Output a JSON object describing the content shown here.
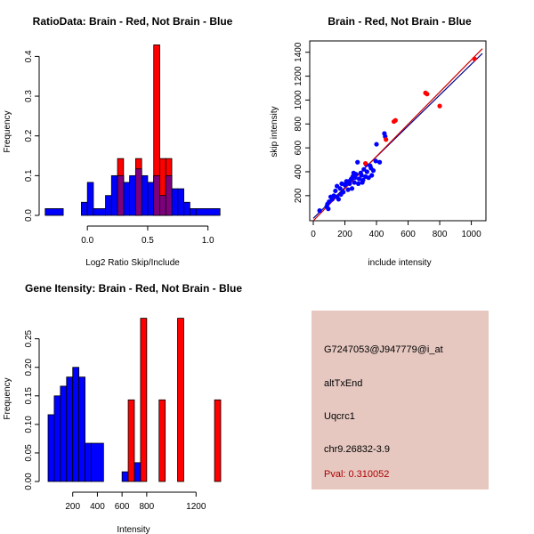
{
  "chart_data": [
    {
      "id": "ratio",
      "type": "bar",
      "title": "RatioData: Brain - Red, Not Brain - Blue",
      "xlabel": "Log2 Ratio Skip/Include",
      "ylabel": "Frequency",
      "xlim": [
        -0.4,
        1.15
      ],
      "ylim": [
        0,
        0.43
      ],
      "xticks": [
        0.0,
        0.5,
        1.0
      ],
      "xtick_labels": [
        "0.0",
        "0.5",
        "1.0"
      ],
      "yticks": [
        0.0,
        0.1,
        0.2,
        0.3,
        0.4
      ],
      "ytick_labels": [
        "0.0",
        "0.1",
        "0.2",
        "0.3",
        "0.4"
      ],
      "series": [
        {
          "name": "Not Brain",
          "color": "#0000ff",
          "bins": [
            {
              "x0": -0.35,
              "x1": -0.2,
              "y": 0.017
            },
            {
              "x0": -0.05,
              "x1": 0.0,
              "y": 0.033
            },
            {
              "x0": 0.0,
              "x1": 0.05,
              "y": 0.083
            },
            {
              "x0": 0.05,
              "x1": 0.15,
              "y": 0.017
            },
            {
              "x0": 0.15,
              "x1": 0.2,
              "y": 0.05
            },
            {
              "x0": 0.2,
              "x1": 0.3,
              "y": 0.1
            },
            {
              "x0": 0.3,
              "x1": 0.35,
              "y": 0.083
            },
            {
              "x0": 0.35,
              "x1": 0.4,
              "y": 0.1
            },
            {
              "x0": 0.4,
              "x1": 0.45,
              "y": 0.117
            },
            {
              "x0": 0.45,
              "x1": 0.5,
              "y": 0.1
            },
            {
              "x0": 0.5,
              "x1": 0.55,
              "y": 0.083
            },
            {
              "x0": 0.55,
              "x1": 0.6,
              "y": 0.1
            },
            {
              "x0": 0.6,
              "x1": 0.65,
              "y": 0.05
            },
            {
              "x0": 0.65,
              "x1": 0.7,
              "y": 0.1
            },
            {
              "x0": 0.7,
              "x1": 0.75,
              "y": 0.067
            },
            {
              "x0": 0.75,
              "x1": 0.8,
              "y": 0.067
            },
            {
              "x0": 0.8,
              "x1": 0.85,
              "y": 0.033
            },
            {
              "x0": 0.85,
              "x1": 0.9,
              "y": 0.017
            },
            {
              "x0": 0.9,
              "x1": 1.1,
              "y": 0.017
            }
          ]
        },
        {
          "name": "Brain",
          "color": "#ff0000",
          "bins": [
            {
              "x0": 0.25,
              "x1": 0.3,
              "y": 0.143
            },
            {
              "x0": 0.4,
              "x1": 0.45,
              "y": 0.143
            },
            {
              "x0": 0.55,
              "x1": 0.6,
              "y": 0.429
            },
            {
              "x0": 0.6,
              "x1": 0.65,
              "y": 0.143
            },
            {
              "x0": 0.65,
              "x1": 0.7,
              "y": 0.143
            }
          ]
        }
      ]
    },
    {
      "id": "scatter",
      "type": "scatter",
      "title": "Brain - Red, Not Brain - Blue",
      "xlabel": "include intensity",
      "ylabel": "skip intensity",
      "xlim": [
        0,
        1070
      ],
      "ylim": [
        20,
        1450
      ],
      "xticks": [
        0,
        200,
        400,
        600,
        800,
        1000
      ],
      "xtick_labels": [
        "0",
        "200",
        "400",
        "600",
        "800",
        "1000"
      ],
      "yticks": [
        200,
        400,
        600,
        800,
        1000,
        1200,
        1400
      ],
      "ytick_labels": [
        "200",
        "400",
        "600",
        "800",
        "1000",
        "1200",
        "1400"
      ],
      "fit_lines": [
        {
          "name": "Not Brain fit",
          "color": "#00008b",
          "x": [
            0,
            1070
          ],
          "y": [
            10,
            1390
          ]
        },
        {
          "name": "Brain fit",
          "color": "#cc0000",
          "x": [
            0,
            1070
          ],
          "y": [
            -10,
            1430
          ]
        }
      ],
      "series": [
        {
          "name": "Not Brain",
          "color": "#0000ff",
          "points": [
            [
              40,
              75
            ],
            [
              85,
              110
            ],
            [
              95,
              90
            ],
            [
              100,
              150
            ],
            [
              110,
              190
            ],
            [
              130,
              200
            ],
            [
              140,
              240
            ],
            [
              150,
              190
            ],
            [
              160,
              170
            ],
            [
              170,
              260
            ],
            [
              180,
              300
            ],
            [
              190,
              230
            ],
            [
              200,
              290
            ],
            [
              210,
              320
            ],
            [
              220,
              250
            ],
            [
              230,
              300
            ],
            [
              240,
              340
            ],
            [
              250,
              360
            ],
            [
              260,
              310
            ],
            [
              270,
              380
            ],
            [
              280,
              480
            ],
            [
              290,
              340
            ],
            [
              300,
              390
            ],
            [
              310,
              310
            ],
            [
              320,
              420
            ],
            [
              330,
              360
            ],
            [
              340,
              400
            ],
            [
              350,
              350
            ],
            [
              360,
              450
            ],
            [
              370,
              370
            ],
            [
              380,
              410
            ],
            [
              395,
              490
            ],
            [
              400,
              630
            ],
            [
              420,
              480
            ],
            [
              450,
              720
            ],
            [
              455,
              695
            ],
            [
              90,
              130
            ],
            [
              120,
              170
            ],
            [
              175,
              210
            ],
            [
              225,
              320
            ],
            [
              245,
              260
            ],
            [
              265,
              350
            ],
            [
              285,
              300
            ],
            [
              305,
              370
            ],
            [
              335,
              460
            ],
            [
              365,
              430
            ],
            [
              150,
              280
            ],
            [
              205,
              300
            ],
            [
              255,
              390
            ],
            [
              315,
              330
            ]
          ]
        },
        {
          "name": "Brain",
          "color": "#ff0000",
          "points": [
            [
              330,
              470
            ],
            [
              460,
              670
            ],
            [
              510,
              820
            ],
            [
              520,
              830
            ],
            [
              710,
              1060
            ],
            [
              720,
              1050
            ],
            [
              800,
              950
            ],
            [
              1020,
              1345
            ]
          ]
        }
      ]
    },
    {
      "id": "gene",
      "type": "bar",
      "title": "Gene Itensity: Brain - Red, Not Brain - Blue",
      "xlabel": "Intensity",
      "ylabel": "Frequency",
      "xlim": [
        0,
        1400
      ],
      "ylim": [
        0,
        0.29
      ],
      "xticks": [
        200,
        400,
        600,
        800,
        1200
      ],
      "xtick_labels": [
        "200",
        "400",
        "600",
        "800",
        "1200"
      ],
      "yticks": [
        0.0,
        0.05,
        0.1,
        0.15,
        0.2,
        0.25
      ],
      "ytick_labels": [
        "0.00",
        "0.05",
        "0.10",
        "0.15",
        "0.20",
        "0.25"
      ],
      "series": [
        {
          "name": "Not Brain",
          "color": "#0000ff",
          "bins": [
            {
              "x0": 0,
              "x1": 50,
              "y": 0.117
            },
            {
              "x0": 50,
              "x1": 100,
              "y": 0.15
            },
            {
              "x0": 100,
              "x1": 150,
              "y": 0.167
            },
            {
              "x0": 150,
              "x1": 200,
              "y": 0.183
            },
            {
              "x0": 200,
              "x1": 250,
              "y": 0.2
            },
            {
              "x0": 250,
              "x1": 300,
              "y": 0.183
            },
            {
              "x0": 300,
              "x1": 350,
              "y": 0.067
            },
            {
              "x0": 350,
              "x1": 450,
              "y": 0.067
            },
            {
              "x0": 600,
              "x1": 650,
              "y": 0.017
            },
            {
              "x0": 700,
              "x1": 750,
              "y": 0.033
            }
          ]
        },
        {
          "name": "Brain",
          "color": "#ff0000",
          "bins": [
            {
              "x0": 650,
              "x1": 700,
              "y": 0.143
            },
            {
              "x0": 750,
              "x1": 800,
              "y": 0.286
            },
            {
              "x0": 900,
              "x1": 950,
              "y": 0.143
            },
            {
              "x0": 1050,
              "x1": 1100,
              "y": 0.286
            },
            {
              "x0": 1350,
              "x1": 1400,
              "y": 0.143
            }
          ]
        }
      ]
    }
  ],
  "info_panel": {
    "background": "#e6c8c0",
    "probe": "G7247053@J947779@i_at",
    "event": "altTxEnd",
    "gene": "Uqcrc1",
    "location": "chr9.26832-3.9",
    "pval": "Pval: 0.310052"
  }
}
